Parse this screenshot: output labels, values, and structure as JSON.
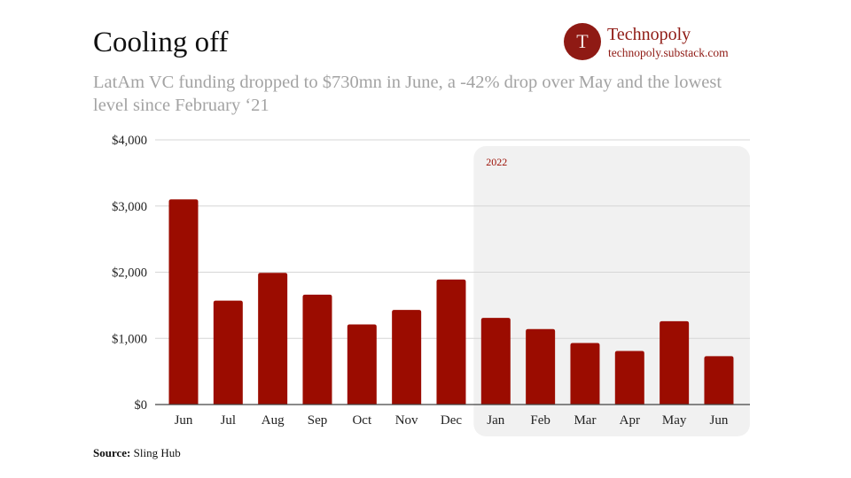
{
  "header": {
    "title": "Cooling off",
    "subtitle": "LatAm VC funding dropped to $730mn in June, a -42% drop over May and the lowest level since February ‘21"
  },
  "brand": {
    "logo_letter": "T",
    "name": "Technopoly",
    "url": "technopoly.substack.com",
    "color": "#8f1a14"
  },
  "source": {
    "label": "Source:",
    "text": "Sling Hub"
  },
  "chart_data": {
    "type": "bar",
    "title": "Cooling off",
    "subtitle": "LatAm VC funding dropped to $730mn in June, a -42% drop over May and the lowest level since February ‘21",
    "categories": [
      "Jun",
      "Jul",
      "Aug",
      "Sep",
      "Oct",
      "Nov",
      "Dec",
      "Jan",
      "Feb",
      "Mar",
      "Apr",
      "May",
      "Jun"
    ],
    "values": [
      3100,
      1570,
      1990,
      1660,
      1210,
      1430,
      1890,
      1310,
      1140,
      930,
      810,
      1260,
      730
    ],
    "yticks": [
      0,
      1000,
      2000,
      3000,
      4000
    ],
    "ytick_labels": [
      "$0",
      "$1,000",
      "$2,000",
      "$3,000",
      "$4,000"
    ],
    "ylim": [
      0,
      4000
    ],
    "grid": true,
    "bar_color": "#9b0c00",
    "highlight": {
      "label": "2022",
      "from_category_index": 7,
      "to_category_index": 12,
      "color": "#f1f1f1"
    },
    "xlabel": "",
    "ylabel": ""
  }
}
